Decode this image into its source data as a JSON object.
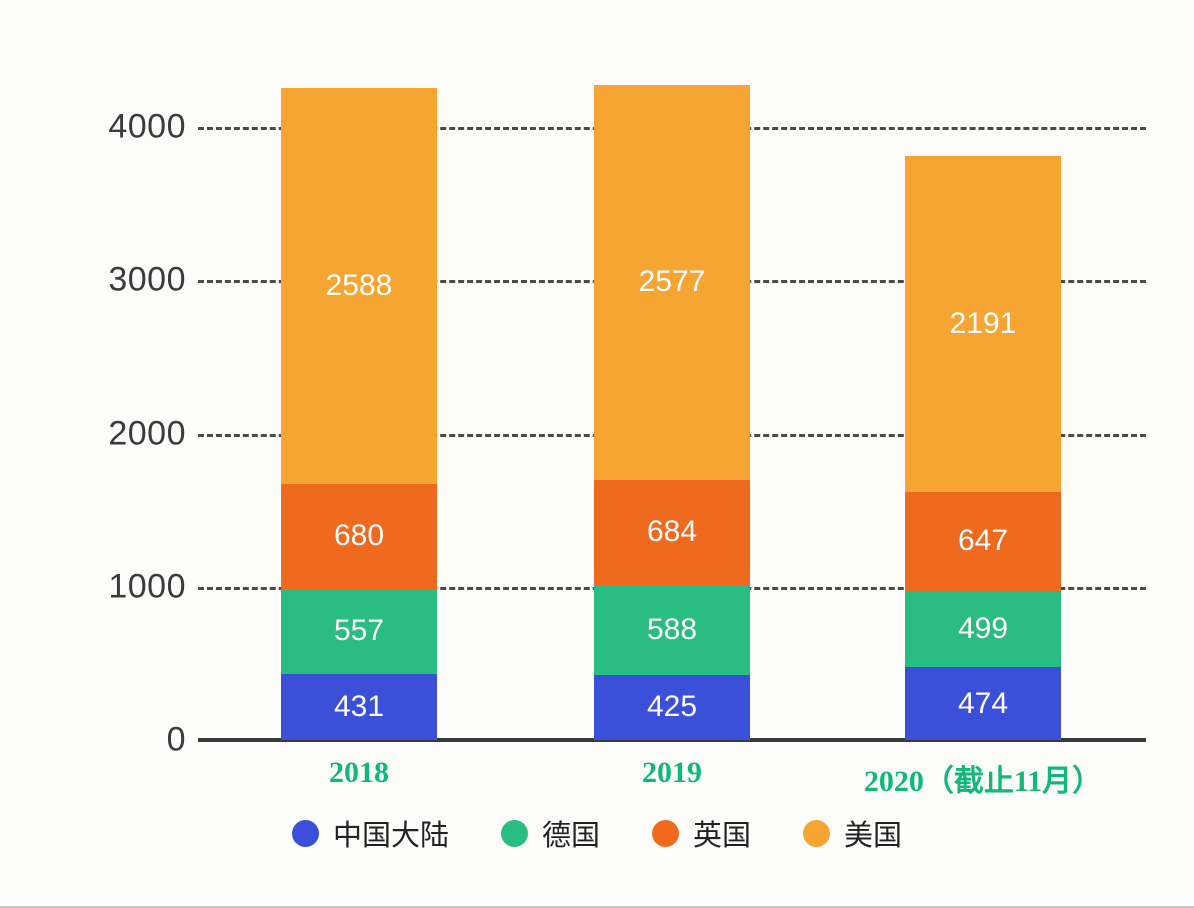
{
  "chart_data": {
    "type": "bar",
    "stacked": true,
    "title": "",
    "xlabel": "",
    "ylabel": "",
    "categories": [
      "2018",
      "2019",
      "2020（截止11月）"
    ],
    "series": [
      {
        "name": "中国大陆",
        "color": "#3a50d9",
        "values": [
          431,
          425,
          474
        ]
      },
      {
        "name": "德国",
        "color": "#29bd82",
        "values": [
          557,
          588,
          499
        ]
      },
      {
        "name": "英国",
        "color": "#ef6a1e",
        "values": [
          680,
          684,
          647
        ]
      },
      {
        "name": "美国",
        "color": "#f6a532",
        "values": [
          2588,
          2577,
          2191
        ]
      }
    ],
    "totals": [
      4256,
      4274,
      3811
    ],
    "y_ticks": [
      0,
      1000,
      2000,
      3000,
      4000
    ],
    "ylim": [
      0,
      4400
    ],
    "grid": "dashed horizontal",
    "legend_position": "bottom",
    "value_labels": "white, centered in each segment",
    "x_tick_color": "#12b87a"
  }
}
